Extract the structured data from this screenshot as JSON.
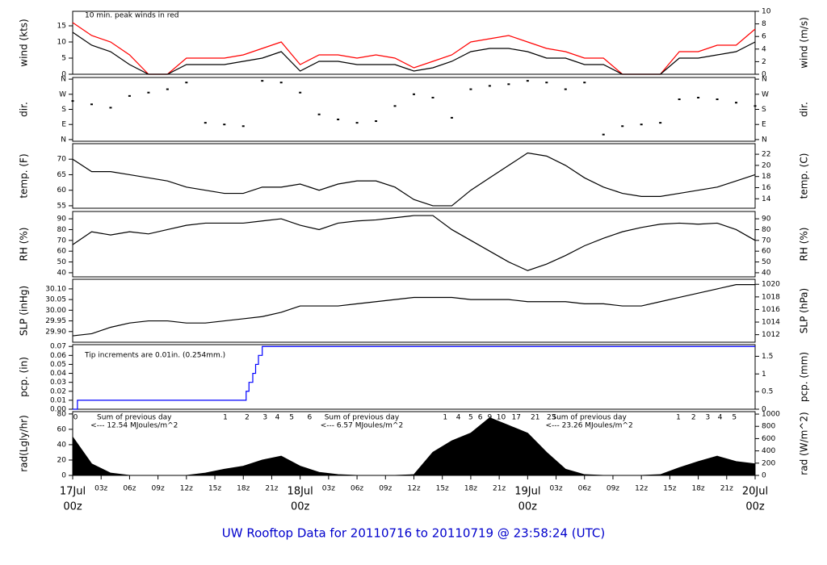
{
  "time_axis": {
    "xlim": [
      0,
      72
    ],
    "x": [
      0,
      2,
      4,
      6,
      8,
      10,
      12,
      14,
      16,
      18,
      20,
      22,
      24,
      26,
      28,
      30,
      32,
      34,
      36,
      38,
      40,
      42,
      44,
      46,
      48,
      50,
      52,
      54,
      56,
      58,
      60,
      62,
      64,
      66,
      68,
      70,
      72
    ],
    "xticks": [
      {
        "value": 0,
        "label": "00z"
      },
      {
        "value": 3,
        "label": "03z"
      },
      {
        "value": 6,
        "label": "06z"
      },
      {
        "value": 9,
        "label": "09z"
      },
      {
        "value": 12,
        "label": "12z"
      },
      {
        "value": 15,
        "label": "15z"
      },
      {
        "value": 18,
        "label": "18z"
      },
      {
        "value": 21,
        "label": "21z"
      },
      {
        "value": 24,
        "label": "00z"
      },
      {
        "value": 27,
        "label": "03z"
      },
      {
        "value": 30,
        "label": "06z"
      },
      {
        "value": 33,
        "label": "09z"
      },
      {
        "value": 36,
        "label": "12z"
      },
      {
        "value": 39,
        "label": "15z"
      },
      {
        "value": 42,
        "label": "18z"
      },
      {
        "value": 45,
        "label": "21z"
      },
      {
        "value": 48,
        "label": "00z"
      },
      {
        "value": 51,
        "label": "03z"
      },
      {
        "value": 54,
        "label": "06z"
      },
      {
        "value": 57,
        "label": "09z"
      },
      {
        "value": 60,
        "label": "12z"
      },
      {
        "value": 63,
        "label": "15z"
      },
      {
        "value": 66,
        "label": "18z"
      },
      {
        "value": 69,
        "label": "21z"
      },
      {
        "value": 72,
        "label": "00z"
      }
    ],
    "day_labels": [
      {
        "value": 0,
        "label": "17Jul"
      },
      {
        "value": 24,
        "label": "18Jul"
      },
      {
        "value": 48,
        "label": "19Jul"
      },
      {
        "value": 72,
        "label": "20Jul"
      }
    ],
    "day_color": "#ff0000"
  },
  "chart_data": [
    {
      "type": "line",
      "ylabel": "wind (kts)",
      "y2label": "wind (m/s)",
      "ylim": [
        0,
        19.5
      ],
      "yticks": [
        0,
        5,
        10,
        15
      ],
      "y2lim": [
        0,
        10
      ],
      "y2ticks": [
        0,
        2,
        4,
        6,
        8,
        10
      ],
      "annotation": {
        "text": "10 min. peak winds in red",
        "color": "#ff0000"
      },
      "series": [
        {
          "color": "#ff0000",
          "values": [
            16,
            12,
            10,
            6,
            0,
            0,
            5,
            5,
            5,
            6,
            8,
            10,
            3,
            6,
            6,
            5,
            6,
            5,
            2,
            4,
            6,
            10,
            11,
            12,
            10,
            8,
            7,
            5,
            5,
            0,
            0,
            0,
            7,
            7,
            9,
            9,
            14
          ]
        },
        {
          "color": "#000000",
          "values": [
            13,
            9,
            7,
            3,
            0,
            0,
            3,
            3,
            3,
            4,
            5,
            7,
            1,
            4,
            4,
            3,
            3,
            3,
            1,
            2,
            4,
            7,
            8,
            8,
            7,
            5,
            5,
            3,
            3,
            0,
            0,
            0,
            5,
            5,
            6,
            7,
            10
          ]
        }
      ]
    },
    {
      "type": "scatter",
      "ylabel": "dir.",
      "y2label": "dir.",
      "ylim": [
        -10,
        370
      ],
      "yticks": [
        {
          "value": 0,
          "label": "N"
        },
        {
          "value": 90,
          "label": "E"
        },
        {
          "value": 180,
          "label": "S"
        },
        {
          "value": 270,
          "label": "W"
        },
        {
          "value": 360,
          "label": "N"
        }
      ],
      "y2lim": [
        -10,
        370
      ],
      "y2ticks": [
        {
          "value": 0,
          "label": "N"
        },
        {
          "value": 90,
          "label": "E"
        },
        {
          "value": 180,
          "label": "S"
        },
        {
          "value": 270,
          "label": "W"
        },
        {
          "value": 360,
          "label": "N"
        }
      ],
      "color": "#000000",
      "values": [
        230,
        210,
        190,
        260,
        280,
        300,
        340,
        100,
        90,
        80,
        350,
        340,
        280,
        150,
        120,
        100,
        110,
        200,
        270,
        250,
        130,
        300,
        320,
        330,
        350,
        340,
        300,
        340,
        30,
        80,
        90,
        100,
        240,
        250,
        240,
        220,
        200
      ]
    },
    {
      "type": "line",
      "ylabel": "temp. (F)",
      "y2label": "temp. (C)",
      "ylim": [
        54.2,
        75
      ],
      "yticks": [
        55,
        60,
        65,
        70
      ],
      "y2lim": [
        12.3,
        23.9
      ],
      "y2ticks": [
        14,
        16,
        18,
        20,
        22
      ],
      "series": [
        {
          "color": "#000000",
          "values": [
            70,
            66,
            66,
            65,
            64,
            63,
            61,
            60,
            59,
            59,
            61,
            61,
            62,
            60,
            62,
            63,
            63,
            61,
            57,
            55,
            55,
            60,
            64,
            68,
            72,
            71,
            68,
            64,
            61,
            59,
            58,
            58,
            59,
            60,
            61,
            63,
            65
          ]
        }
      ]
    },
    {
      "type": "line",
      "ylabel": "RH (%)",
      "y2label": "RH (%)",
      "ylim": [
        36.2,
        96.8
      ],
      "yticks": [
        40,
        50,
        60,
        70,
        80,
        90
      ],
      "y2lim": [
        36.2,
        96.8
      ],
      "y2ticks": [
        40,
        50,
        60,
        70,
        80,
        90
      ],
      "series": [
        {
          "color": "#000000",
          "values": [
            66,
            78,
            75,
            78,
            76,
            80,
            84,
            86,
            86,
            86,
            88,
            90,
            84,
            80,
            86,
            88,
            89,
            91,
            93,
            93,
            80,
            70,
            60,
            50,
            42,
            48,
            56,
            65,
            72,
            78,
            82,
            85,
            86,
            85,
            86,
            80,
            70
          ]
        }
      ]
    },
    {
      "type": "line",
      "ylabel": "SLP (inHg)",
      "y2label": "SLP (hPa)",
      "ylim": [
        29.85,
        30.145
      ],
      "yticks": [
        {
          "value": 29.9,
          "label": "29.90"
        },
        29.95,
        {
          "value": 30,
          "label": "30.00"
        },
        30.05,
        {
          "value": 30.1,
          "label": "30.10"
        }
      ],
      "y2lim": [
        1010.8,
        1020.8
      ],
      "y2ticks": [
        1012,
        1014,
        1016,
        1018,
        1020
      ],
      "series": [
        {
          "color": "#000000",
          "values": [
            29.88,
            29.89,
            29.92,
            29.94,
            29.95,
            29.95,
            29.94,
            29.94,
            29.95,
            29.96,
            29.97,
            29.99,
            30.02,
            30.02,
            30.02,
            30.03,
            30.04,
            30.05,
            30.06,
            30.06,
            30.06,
            30.05,
            30.05,
            30.05,
            30.04,
            30.04,
            30.04,
            30.03,
            30.03,
            30.02,
            30.02,
            30.04,
            30.06,
            30.08,
            30.1,
            30.12,
            30.12
          ]
        }
      ]
    },
    {
      "type": "line",
      "step": "post",
      "ylabel": "pcp. (in)",
      "y2label": "pcp. (mm)",
      "ylim": [
        0,
        0.072
      ],
      "yticks": [
        {
          "value": 0,
          "label": "0.00"
        },
        0.01,
        0.02,
        0.03,
        0.04,
        0.05,
        0.06,
        0.07
      ],
      "y2lim": [
        0,
        1.83
      ],
      "y2ticks": [
        0,
        0.5,
        1,
        1.5
      ],
      "annotation": {
        "text": "Tip increments are 0.01in. (0.254mm.)",
        "color": "#000099"
      },
      "x": [
        0,
        0.5,
        18,
        18.3,
        18.6,
        19,
        19.3,
        19.6,
        20,
        72
      ],
      "series": [
        {
          "color": "#0000ff",
          "values": [
            0,
            0.01,
            0.01,
            0.02,
            0.03,
            0.04,
            0.05,
            0.06,
            0.07,
            0.07
          ]
        }
      ]
    },
    {
      "type": "area",
      "ylabel": "rad(Lgly/hr)",
      "y2label": "rad (W/m^2)",
      "ylim": [
        0,
        83
      ],
      "yticks": [
        0,
        20,
        40,
        60,
        80
      ],
      "y2lim": [
        0,
        1040
      ],
      "y2ticks": [
        0,
        200,
        400,
        600,
        800,
        1000
      ],
      "color": "#000000",
      "values": [
        50,
        15,
        3,
        0,
        0,
        0,
        0,
        3,
        8,
        12,
        20,
        25,
        12,
        4,
        1,
        0,
        0,
        0,
        1,
        30,
        45,
        55,
        75,
        65,
        55,
        30,
        8,
        1,
        0,
        0,
        0,
        1,
        10,
        18,
        25,
        18,
        15
      ],
      "daily_sums": [
        {
          "title": "Sum of previous day",
          "text": "<--- 12.54 MJoules/m^2"
        },
        {
          "title": "Sum of previous day",
          "text": "<--- 6.57 MJoules/m^2"
        },
        {
          "title": "Sum of previous day",
          "text": "<--- 23.26 MJoules/m^2"
        }
      ],
      "sum_color": "#9933cc",
      "hour_marks": [
        {
          "x": 0.3,
          "label": "0"
        },
        {
          "x": 16.1,
          "label": "1"
        },
        {
          "x": 18.4,
          "label": "2"
        },
        {
          "x": 20.3,
          "label": "3"
        },
        {
          "x": 21.6,
          "label": "4"
        },
        {
          "x": 23.1,
          "label": "5"
        },
        {
          "x": 25,
          "label": "6"
        },
        {
          "x": 39.3,
          "label": "1"
        },
        {
          "x": 40.7,
          "label": "4"
        },
        {
          "x": 42,
          "label": "5"
        },
        {
          "x": 43,
          "label": "6"
        },
        {
          "x": 44,
          "label": "9"
        },
        {
          "x": 45.2,
          "label": "10"
        },
        {
          "x": 46.8,
          "label": "17"
        },
        {
          "x": 48.8,
          "label": "21"
        },
        {
          "x": 50.5,
          "label": "23"
        },
        {
          "x": 63.9,
          "label": "1"
        },
        {
          "x": 65.5,
          "label": "2"
        },
        {
          "x": 67,
          "label": "3"
        },
        {
          "x": 68.3,
          "label": "4"
        },
        {
          "x": 69.8,
          "label": "5"
        }
      ],
      "hour_color": "#9933cc"
    }
  ],
  "footer": "UW Rooftop Data for 20110716  to  20110719 @ 23:58:24  (UTC)"
}
